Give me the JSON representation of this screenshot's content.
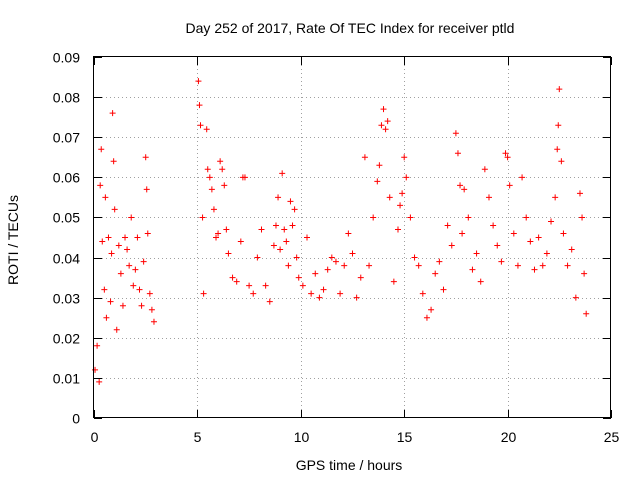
{
  "chart_data": {
    "type": "scatter",
    "title": "Day 252 of 2017, Rate Of TEC Index for receiver ptld",
    "xlabel": "GPS time / hours",
    "ylabel": "ROTI / TECUs",
    "xlim": [
      0,
      25
    ],
    "ylim": [
      0,
      0.09
    ],
    "xticks": [
      0,
      5,
      10,
      15,
      20,
      25
    ],
    "xtick_labels": [
      "0",
      "5",
      "10",
      "15",
      "20",
      "25"
    ],
    "yticks": [
      0,
      0.01,
      0.02,
      0.03,
      0.04,
      0.05,
      0.06,
      0.07,
      0.08,
      0.09
    ],
    "ytick_labels": [
      "0",
      "0.01",
      "0.02",
      "0.03",
      "0.04",
      "0.05",
      "0.06",
      "0.07",
      "0.08",
      "0.09"
    ],
    "grid": true,
    "marker": "plus",
    "color": "#ff0000",
    "data_gap_hours": [
      3.0,
      5.0
    ],
    "series": [
      {
        "points": [
          [
            0.05,
            0.012
          ],
          [
            0.15,
            0.018
          ],
          [
            0.25,
            0.009
          ],
          [
            0.3,
            0.058
          ],
          [
            0.35,
            0.067
          ],
          [
            0.4,
            0.044
          ],
          [
            0.5,
            0.032
          ],
          [
            0.55,
            0.055
          ],
          [
            0.6,
            0.025
          ],
          [
            0.7,
            0.045
          ],
          [
            0.8,
            0.029
          ],
          [
            0.85,
            0.041
          ],
          [
            0.9,
            0.076
          ],
          [
            0.95,
            0.064
          ],
          [
            1.0,
            0.052
          ],
          [
            1.1,
            0.022
          ],
          [
            1.2,
            0.043
          ],
          [
            1.3,
            0.036
          ],
          [
            1.4,
            0.028
          ],
          [
            1.5,
            0.045
          ],
          [
            1.6,
            0.042
          ],
          [
            1.7,
            0.038
          ],
          [
            1.8,
            0.05
          ],
          [
            1.9,
            0.033
          ],
          [
            2.0,
            0.037
          ],
          [
            2.1,
            0.045
          ],
          [
            2.2,
            0.032
          ],
          [
            2.3,
            0.028
          ],
          [
            2.4,
            0.039
          ],
          [
            2.5,
            0.065
          ],
          [
            2.55,
            0.057
          ],
          [
            2.6,
            0.046
          ],
          [
            2.7,
            0.031
          ],
          [
            2.8,
            0.027
          ],
          [
            2.9,
            0.024
          ],
          [
            5.05,
            0.084
          ],
          [
            5.1,
            0.078
          ],
          [
            5.15,
            0.073
          ],
          [
            5.25,
            0.05
          ],
          [
            5.3,
            0.031
          ],
          [
            5.45,
            0.072
          ],
          [
            5.5,
            0.062
          ],
          [
            5.6,
            0.06
          ],
          [
            5.7,
            0.057
          ],
          [
            5.8,
            0.052
          ],
          [
            5.9,
            0.045
          ],
          [
            6.0,
            0.046
          ],
          [
            6.1,
            0.064
          ],
          [
            6.2,
            0.062
          ],
          [
            6.3,
            0.058
          ],
          [
            6.4,
            0.047
          ],
          [
            6.5,
            0.041
          ],
          [
            6.7,
            0.035
          ],
          [
            6.9,
            0.034
          ],
          [
            7.1,
            0.044
          ],
          [
            7.2,
            0.06
          ],
          [
            7.3,
            0.06
          ],
          [
            7.5,
            0.033
          ],
          [
            7.7,
            0.031
          ],
          [
            7.9,
            0.04
          ],
          [
            8.1,
            0.047
          ],
          [
            8.3,
            0.033
          ],
          [
            8.5,
            0.029
          ],
          [
            8.7,
            0.043
          ],
          [
            8.8,
            0.048
          ],
          [
            8.9,
            0.055
          ],
          [
            9.0,
            0.042
          ],
          [
            9.1,
            0.061
          ],
          [
            9.2,
            0.047
          ],
          [
            9.3,
            0.044
          ],
          [
            9.4,
            0.038
          ],
          [
            9.5,
            0.054
          ],
          [
            9.6,
            0.048
          ],
          [
            9.7,
            0.052
          ],
          [
            9.8,
            0.04
          ],
          [
            9.9,
            0.035
          ],
          [
            10.1,
            0.033
          ],
          [
            10.3,
            0.045
          ],
          [
            10.5,
            0.031
          ],
          [
            10.7,
            0.036
          ],
          [
            10.9,
            0.03
          ],
          [
            11.1,
            0.032
          ],
          [
            11.3,
            0.037
          ],
          [
            11.5,
            0.04
          ],
          [
            11.7,
            0.039
          ],
          [
            11.9,
            0.031
          ],
          [
            12.1,
            0.038
          ],
          [
            12.3,
            0.046
          ],
          [
            12.5,
            0.041
          ],
          [
            12.7,
            0.03
          ],
          [
            12.9,
            0.035
          ],
          [
            13.1,
            0.065
          ],
          [
            13.3,
            0.038
          ],
          [
            13.5,
            0.05
          ],
          [
            13.7,
            0.059
          ],
          [
            13.8,
            0.063
          ],
          [
            13.9,
            0.073
          ],
          [
            14.0,
            0.077
          ],
          [
            14.1,
            0.072
          ],
          [
            14.2,
            0.074
          ],
          [
            14.3,
            0.055
          ],
          [
            14.5,
            0.034
          ],
          [
            14.7,
            0.047
          ],
          [
            14.8,
            0.053
          ],
          [
            14.9,
            0.056
          ],
          [
            15.0,
            0.065
          ],
          [
            15.1,
            0.06
          ],
          [
            15.3,
            0.05
          ],
          [
            15.5,
            0.04
          ],
          [
            15.7,
            0.038
          ],
          [
            15.9,
            0.031
          ],
          [
            16.1,
            0.025
          ],
          [
            16.3,
            0.027
          ],
          [
            16.5,
            0.036
          ],
          [
            16.7,
            0.039
          ],
          [
            16.9,
            0.032
          ],
          [
            17.1,
            0.048
          ],
          [
            17.3,
            0.043
          ],
          [
            17.5,
            0.071
          ],
          [
            17.6,
            0.066
          ],
          [
            17.7,
            0.058
          ],
          [
            17.8,
            0.046
          ],
          [
            17.9,
            0.057
          ],
          [
            18.1,
            0.05
          ],
          [
            18.3,
            0.037
          ],
          [
            18.5,
            0.041
          ],
          [
            18.7,
            0.034
          ],
          [
            18.9,
            0.062
          ],
          [
            19.1,
            0.055
          ],
          [
            19.3,
            0.048
          ],
          [
            19.5,
            0.043
          ],
          [
            19.7,
            0.039
          ],
          [
            19.9,
            0.066
          ],
          [
            20.0,
            0.065
          ],
          [
            20.1,
            0.058
          ],
          [
            20.3,
            0.046
          ],
          [
            20.5,
            0.038
          ],
          [
            20.7,
            0.06
          ],
          [
            20.9,
            0.05
          ],
          [
            21.1,
            0.044
          ],
          [
            21.3,
            0.037
          ],
          [
            21.5,
            0.045
          ],
          [
            21.7,
            0.038
          ],
          [
            21.9,
            0.041
          ],
          [
            22.1,
            0.049
          ],
          [
            22.3,
            0.055
          ],
          [
            22.4,
            0.067
          ],
          [
            22.45,
            0.073
          ],
          [
            22.5,
            0.082
          ],
          [
            22.6,
            0.064
          ],
          [
            22.7,
            0.046
          ],
          [
            22.9,
            0.038
          ],
          [
            23.1,
            0.042
          ],
          [
            23.3,
            0.03
          ],
          [
            23.5,
            0.056
          ],
          [
            23.6,
            0.05
          ],
          [
            23.7,
            0.036
          ],
          [
            23.8,
            0.026
          ]
        ]
      }
    ]
  }
}
